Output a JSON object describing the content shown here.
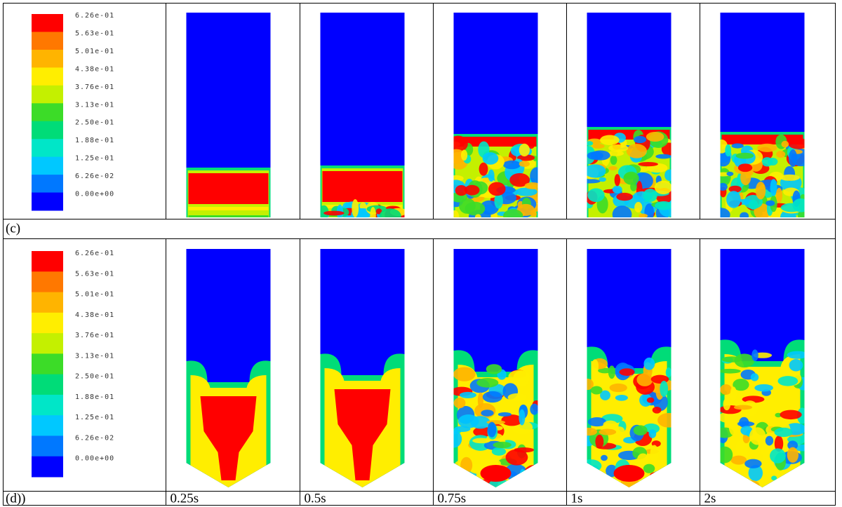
{
  "legend": {
    "labels": [
      "6.26e-01",
      "5.63e-01",
      "5.01e-01",
      "4.38e-01",
      "3.76e-01",
      "3.13e-01",
      "2.50e-01",
      "1.88e-01",
      "1.25e-01",
      "6.26e-02",
      "0.00e+00"
    ]
  },
  "rows": [
    {
      "label": "(c)"
    },
    {
      "label": "(d))"
    }
  ],
  "times": [
    "0.25s",
    "0.5s",
    "0.75s",
    "1s",
    "2s"
  ]
}
